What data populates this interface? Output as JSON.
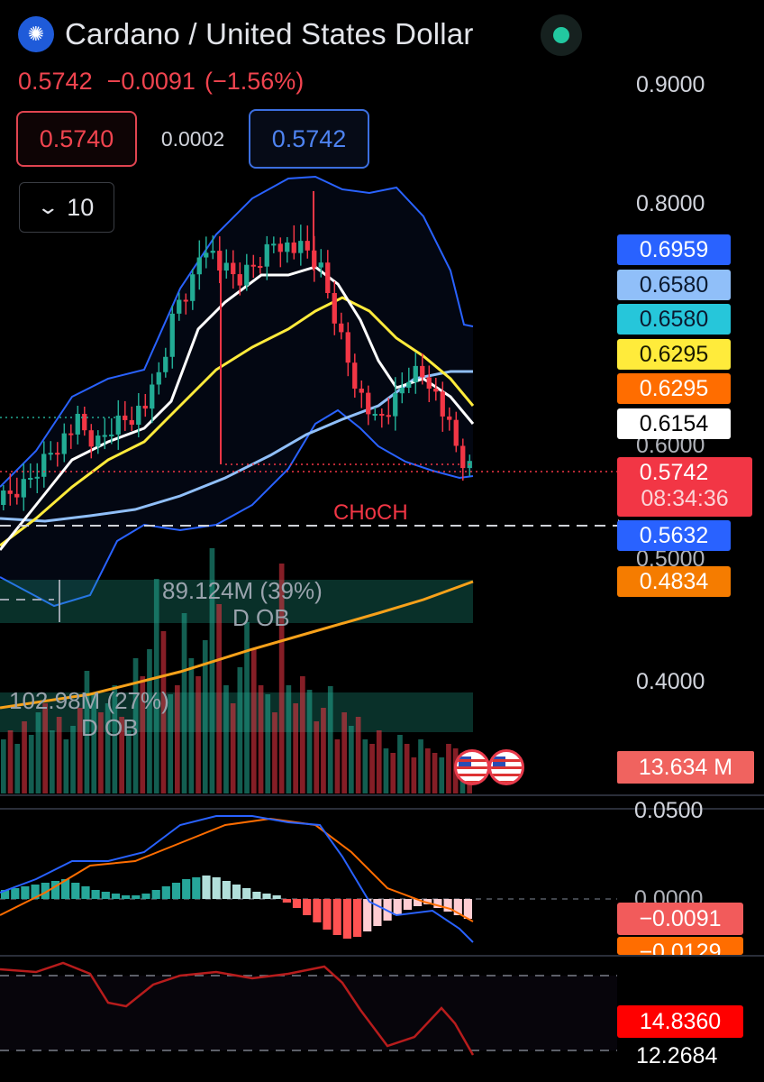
{
  "header": {
    "title": "Cardano / United States Dollar",
    "logo_icon": "cardano-logo-icon",
    "status_icon": "market-open-dot-icon",
    "last": "0.5742",
    "change": "−0.0091",
    "change_pct": "(−1.56%)",
    "bid": "0.5740",
    "spread": "0.0002",
    "ask": "0.5742",
    "interval": "10",
    "interval_icon": "chevron-down-icon"
  },
  "colors": {
    "up": "#22ab94",
    "down": "#f23645",
    "bb_band": "#2962ff",
    "ema_white": "#ffffff",
    "ema_yellow": "#ffeb3b",
    "ema_lightblue": "#90bff9",
    "volume_ma": "#f7a11a",
    "macd_line": "#2962ff",
    "signal_line": "#ff6d00",
    "rsi_line": "#b71c1c"
  },
  "chart_data": [
    {
      "type": "line",
      "title": "Cardano / United States Dollar",
      "panel": "price",
      "y_axis_ticks": [
        "0.9000",
        "0.8000",
        "0.6000",
        "0.5000",
        "0.4000"
      ],
      "ylim": [
        0.37,
        0.92
      ],
      "candle_count": 70,
      "annotation": "CHoCH",
      "price_tags": [
        {
          "value": "0.6959",
          "bg": "#2962ff",
          "fg": "#ffffff"
        },
        {
          "value": "0.6580",
          "bg": "#90bff9",
          "fg": "#0b1a30"
        },
        {
          "value": "0.6580",
          "bg": "#26c6da",
          "fg": "#0b1a30"
        },
        {
          "value": "0.6295",
          "bg": "#ffeb3b",
          "fg": "#1a1a00"
        },
        {
          "value": "0.6295",
          "bg": "#ff6d00",
          "fg": "#ffffff"
        },
        {
          "value": "0.6154",
          "bg": "#ffffff",
          "fg": "#000000"
        },
        {
          "value": "0.5632",
          "bg": "#2962ff",
          "fg": "#ffffff"
        },
        {
          "value": "0.4834",
          "bg": "#f57c00",
          "fg": "#ffffff"
        }
      ],
      "last_price_tag": {
        "value": "0.5742",
        "countdown": "08:34:36"
      },
      "order_blocks": [
        {
          "label": "89.124M (39%)",
          "sub": "D OB"
        },
        {
          "label": "102.98M (27%)",
          "sub": "D OB"
        }
      ]
    },
    {
      "type": "bar",
      "panel": "volume",
      "last_value": "13.634 M"
    },
    {
      "type": "line",
      "panel": "macd",
      "y_axis_ticks": [
        "0.0500",
        "0.0000"
      ],
      "macd_value": "−0.0091",
      "signal_value": "−0.0129"
    },
    {
      "type": "line",
      "panel": "rsi",
      "rsi_value": "14.8360",
      "level_value": "12.2684"
    }
  ]
}
